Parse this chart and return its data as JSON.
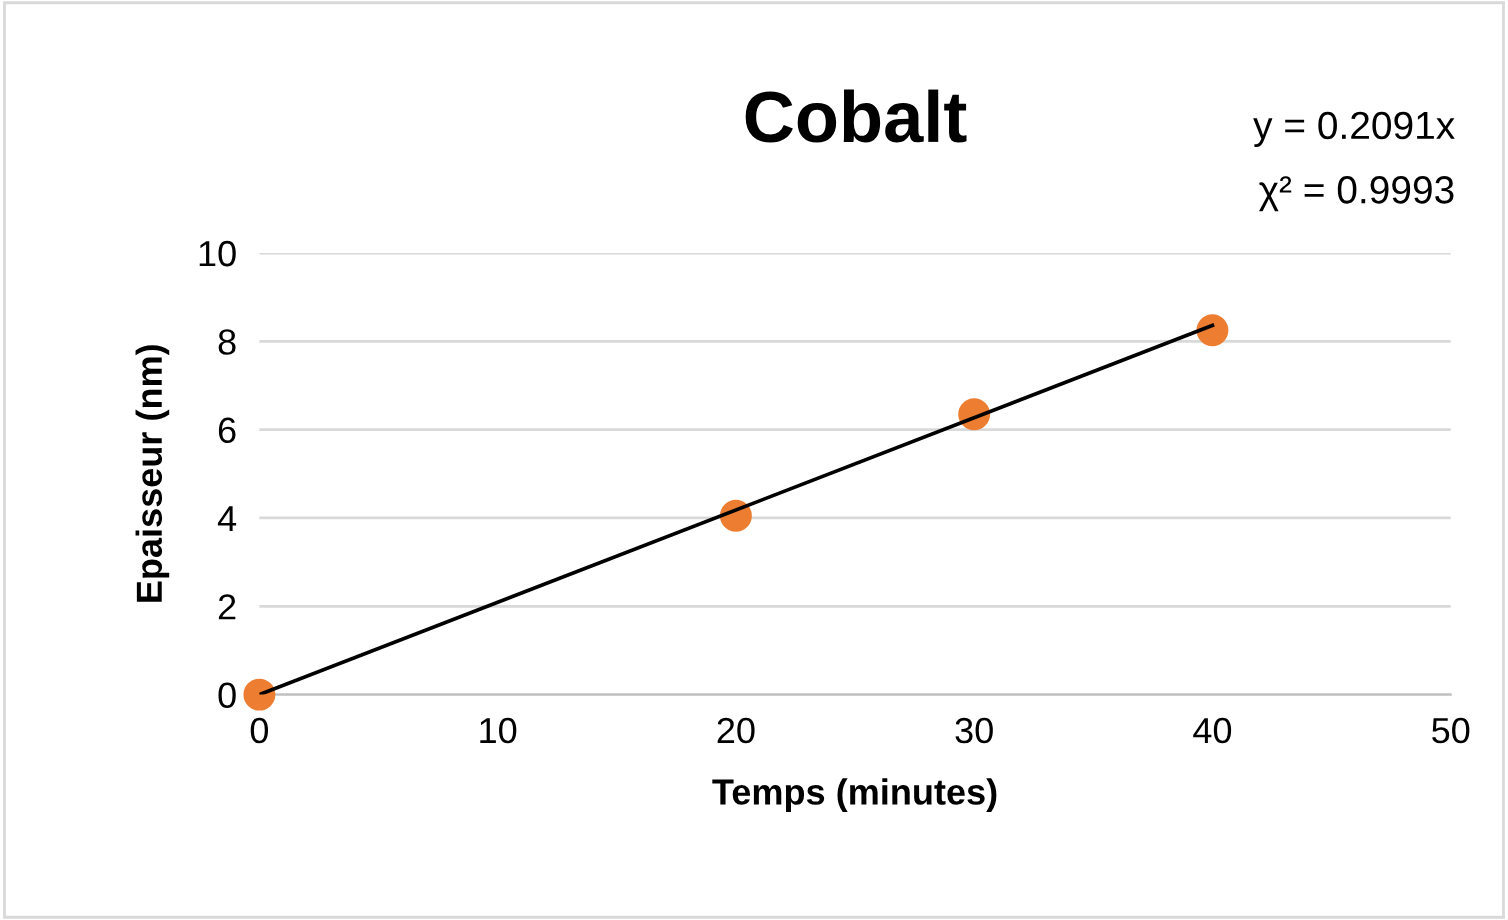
{
  "chart_data": {
    "type": "scatter",
    "title": "Cobalt",
    "xlabel": "Temps (minutes)",
    "ylabel": "Epaisseur (nm)",
    "x": [
      0,
      20,
      30,
      40
    ],
    "series": [
      {
        "color": "#ed7d31",
        "marker": "circle",
        "values": [
          0,
          4.05,
          6.35,
          8.25
        ]
      },
      {
        "type": "line",
        "color": "#000000",
        "marker": "none",
        "x": [
          0,
          40
        ],
        "values": [
          0,
          8.36
        ]
      }
    ],
    "annotations": [
      "y = 0.2091x",
      "χ² = 0.9993"
    ],
    "xlim": [
      0,
      50
    ],
    "xticks": [
      0,
      10,
      20,
      30,
      40,
      50
    ],
    "ylim": [
      0,
      10
    ],
    "yticks": [
      0,
      2,
      4,
      6,
      8,
      10
    ],
    "grid": "y",
    "legend": false
  }
}
